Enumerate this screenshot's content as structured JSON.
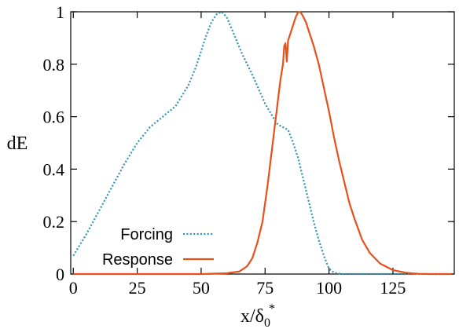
{
  "chart_data": {
    "type": "line",
    "title": "",
    "xlabel": "x/δ",
    "xlabel_subscript": "0",
    "xlabel_superscript": "*",
    "ylabel": "dE",
    "xlim": [
      -1,
      149
    ],
    "ylim": [
      0,
      1
    ],
    "x_ticks": [
      0,
      25,
      50,
      75,
      100,
      125
    ],
    "x_tick_labels": [
      "0",
      "25",
      "50",
      "75",
      "100",
      "125"
    ],
    "y_ticks": [
      0,
      0.2,
      0.4,
      0.6,
      0.8,
      1
    ],
    "y_tick_labels": [
      "0",
      "0.2",
      "0.4",
      "0.6",
      "0.8",
      "1"
    ],
    "grid": false,
    "legend_position": "bottom-left",
    "series": [
      {
        "name": "Forcing",
        "color": "#2e93b8",
        "style": "dotted",
        "x": [
          0,
          5,
          10,
          15,
          20,
          25,
          30,
          35,
          40,
          45,
          48,
          50,
          52,
          54,
          56,
          58,
          60,
          63,
          66,
          70,
          75,
          78,
          80,
          82,
          84,
          86,
          88,
          90,
          92,
          94,
          96,
          98,
          100,
          102,
          105,
          110,
          148
        ],
        "y": [
          0.07,
          0.15,
          0.24,
          0.33,
          0.42,
          0.5,
          0.56,
          0.6,
          0.64,
          0.72,
          0.79,
          0.85,
          0.91,
          0.96,
          0.99,
          1.0,
          0.98,
          0.91,
          0.84,
          0.76,
          0.65,
          0.6,
          0.57,
          0.56,
          0.55,
          0.5,
          0.44,
          0.36,
          0.28,
          0.2,
          0.13,
          0.07,
          0.02,
          0.005,
          0.0,
          0.0,
          0.0
        ]
      },
      {
        "name": "Response",
        "color": "#e8501a",
        "style": "solid",
        "x": [
          0,
          30,
          50,
          60,
          65,
          68,
          70,
          72,
          74,
          76,
          78,
          80,
          81,
          82,
          82.5,
          83,
          83.5,
          84,
          85,
          86,
          87,
          88,
          89,
          90,
          91,
          92,
          94,
          96,
          98,
          100,
          102,
          104,
          106,
          108,
          110,
          113,
          116,
          120,
          125,
          130,
          135,
          140,
          148
        ],
        "y": [
          0,
          0,
          0,
          0.003,
          0.01,
          0.03,
          0.06,
          0.12,
          0.2,
          0.34,
          0.5,
          0.66,
          0.74,
          0.8,
          0.87,
          0.88,
          0.81,
          0.89,
          0.92,
          0.95,
          0.98,
          1.0,
          0.997,
          0.98,
          0.96,
          0.93,
          0.87,
          0.8,
          0.71,
          0.62,
          0.52,
          0.43,
          0.35,
          0.27,
          0.21,
          0.13,
          0.08,
          0.04,
          0.015,
          0.005,
          0.001,
          0.0,
          0.0
        ]
      }
    ]
  }
}
